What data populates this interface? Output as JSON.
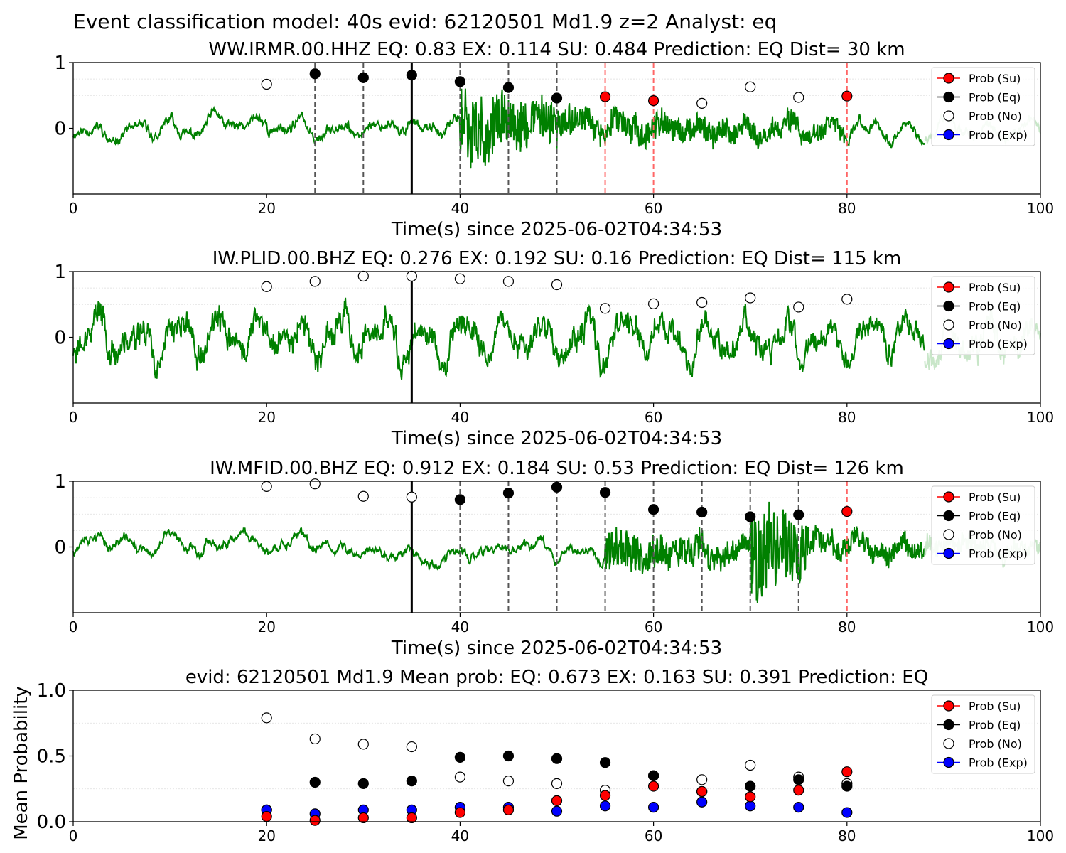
{
  "figure": {
    "suptitle": "Event classification model: 40s evid: 62120501 Md1.9 z=2 Analyst: eq",
    "colors": {
      "su": "#ff0000",
      "eq": "#000000",
      "no": "#ffffff",
      "exp": "#0000ff",
      "trace": "#008000",
      "trace_faded": "#c8e6c8",
      "pick_eq": "#555555",
      "pick_su": "#ff6666"
    }
  },
  "chart_data": [
    {
      "type": "scatter",
      "title": "WW.IRMR.00.HHZ   EQ: 0.83  EX: 0.114  SU: 0.484   Prediction: EQ    Dist= 30 km",
      "xlabel": "Time(s) since 2025-06-02T04:34:53",
      "ylabel": "",
      "xlim": [
        0,
        100
      ],
      "ylim": [
        -1,
        1
      ],
      "x_ticks": [
        "0",
        "20",
        "40",
        "60",
        "80",
        "100"
      ],
      "y_ticks": [
        "1",
        "0"
      ],
      "legend": [
        "Prob (Su)",
        "Prob (Eq)",
        "Prob (No)",
        "Prob (Exp)"
      ],
      "legend_position": "top-right",
      "arrival_line": 35,
      "eq_marker_lines": [
        25,
        30,
        40,
        45,
        50
      ],
      "su_marker_lines": [
        55,
        60,
        80
      ],
      "trace": {
        "seed": 11,
        "amp": 0.16,
        "bursts": [
          [
            40,
            50,
            0.55
          ],
          [
            50,
            80,
            0.22
          ]
        ]
      },
      "series": [
        {
          "name": "Prob (No)",
          "x": [
            20,
            65,
            70,
            75
          ],
          "y": [
            0.67,
            0.38,
            0.63,
            0.47
          ]
        },
        {
          "name": "Prob (Eq)",
          "x": [
            25,
            30,
            35,
            40,
            45,
            50
          ],
          "y": [
            0.83,
            0.77,
            0.81,
            0.71,
            0.62,
            0.46
          ]
        },
        {
          "name": "Prob (Su)",
          "x": [
            55,
            60,
            80
          ],
          "y": [
            0.48,
            0.42,
            0.49
          ]
        }
      ]
    },
    {
      "type": "scatter",
      "title": "IW.PLID.00.BHZ   EQ: 0.276  EX: 0.192  SU: 0.16   Prediction: EQ    Dist= 115 km",
      "xlabel": "Time(s) since 2025-06-02T04:34:53",
      "ylabel": "",
      "xlim": [
        0,
        100
      ],
      "ylim": [
        -1,
        1
      ],
      "x_ticks": [
        "0",
        "20",
        "40",
        "60",
        "80",
        "100"
      ],
      "y_ticks": [
        "1",
        "0"
      ],
      "legend": [
        "Prob (Su)",
        "Prob (Eq)",
        "Prob (No)",
        "Prob (Exp)"
      ],
      "legend_position": "top-right",
      "arrival_line": 35,
      "eq_marker_lines": [],
      "su_marker_lines": [],
      "trace": {
        "seed": 23,
        "amp": 0.42,
        "bursts": [
          [
            0,
            100,
            0.1
          ]
        ]
      },
      "series": [
        {
          "name": "Prob (No)",
          "x": [
            20,
            25,
            30,
            35,
            40,
            45,
            50,
            55,
            60,
            65,
            70,
            75,
            80
          ],
          "y": [
            0.77,
            0.85,
            0.93,
            0.93,
            0.89,
            0.85,
            0.8,
            0.44,
            0.51,
            0.53,
            0.6,
            0.46,
            0.58
          ]
        }
      ]
    },
    {
      "type": "scatter",
      "title": "IW.MFID.00.BHZ   EQ: 0.912  EX: 0.184  SU: 0.53   Prediction: EQ    Dist= 126 km",
      "xlabel": "Time(s) since 2025-06-02T04:34:53",
      "ylabel": "",
      "xlim": [
        0,
        100
      ],
      "ylim": [
        -1,
        1
      ],
      "x_ticks": [
        "0",
        "20",
        "40",
        "60",
        "80",
        "100"
      ],
      "y_ticks": [
        "1",
        "0"
      ],
      "legend": [
        "Prob (Su)",
        "Prob (Eq)",
        "Prob (No)",
        "Prob (Exp)"
      ],
      "legend_position": "top-right",
      "arrival_line": 35,
      "eq_marker_lines": [
        40,
        45,
        50,
        55,
        60,
        65,
        70,
        75
      ],
      "su_marker_lines": [
        80
      ],
      "trace": {
        "seed": 37,
        "amp": 0.14,
        "bursts": [
          [
            55,
            70,
            0.3
          ],
          [
            70,
            76,
            0.8
          ],
          [
            76,
            100,
            0.18
          ]
        ]
      },
      "series": [
        {
          "name": "Prob (No)",
          "x": [
            20,
            25,
            30,
            35
          ],
          "y": [
            0.92,
            0.96,
            0.77,
            0.76
          ]
        },
        {
          "name": "Prob (Eq)",
          "x": [
            40,
            45,
            50,
            55,
            60,
            65,
            70,
            75
          ],
          "y": [
            0.72,
            0.82,
            0.91,
            0.83,
            0.57,
            0.53,
            0.46,
            0.49
          ]
        },
        {
          "name": "Prob (Su)",
          "x": [
            80
          ],
          "y": [
            0.54
          ]
        }
      ]
    },
    {
      "type": "scatter",
      "title": "evid: 62120501  Md1.9   Mean prob:   EQ: 0.673  EX: 0.163  SU: 0.391   Prediction: EQ",
      "xlabel": "",
      "ylabel": "Mean Probability",
      "xlim": [
        0,
        100
      ],
      "ylim": [
        0,
        1
      ],
      "x_ticks": [
        "0",
        "20",
        "40",
        "60",
        "80",
        "100"
      ],
      "y_ticks": [
        "0.0",
        "0.5",
        "1.0"
      ],
      "legend": [
        "Prob (Su)",
        "Prob (Eq)",
        "Prob (No)",
        "Prob (Exp)"
      ],
      "legend_position": "top-right",
      "series": [
        {
          "name": "Prob (No)",
          "x": [
            20,
            25,
            30,
            35,
            40,
            45,
            50,
            55,
            60,
            65,
            70,
            75,
            80
          ],
          "y": [
            0.79,
            0.63,
            0.59,
            0.57,
            0.34,
            0.31,
            0.29,
            0.24,
            0.35,
            0.32,
            0.43,
            0.34,
            0.29
          ]
        },
        {
          "name": "Prob (Eq)",
          "x": [
            20,
            25,
            30,
            35,
            40,
            45,
            50,
            55,
            60,
            65,
            70,
            75,
            80
          ],
          "y": [
            0.09,
            0.3,
            0.29,
            0.31,
            0.49,
            0.5,
            0.48,
            0.45,
            0.35,
            0.23,
            0.27,
            0.32,
            0.27
          ]
        },
        {
          "name": "Prob (Exp)",
          "x": [
            20,
            25,
            30,
            35,
            40,
            45,
            50,
            55,
            60,
            65,
            70,
            75,
            80
          ],
          "y": [
            0.09,
            0.06,
            0.09,
            0.09,
            0.11,
            0.11,
            0.08,
            0.12,
            0.11,
            0.15,
            0.12,
            0.11,
            0.07
          ]
        },
        {
          "name": "Prob (Su)",
          "x": [
            20,
            25,
            30,
            35,
            40,
            45,
            50,
            55,
            60,
            65,
            70,
            75,
            80
          ],
          "y": [
            0.04,
            0.01,
            0.03,
            0.03,
            0.07,
            0.09,
            0.16,
            0.2,
            0.27,
            0.23,
            0.19,
            0.24,
            0.38
          ]
        }
      ]
    }
  ]
}
